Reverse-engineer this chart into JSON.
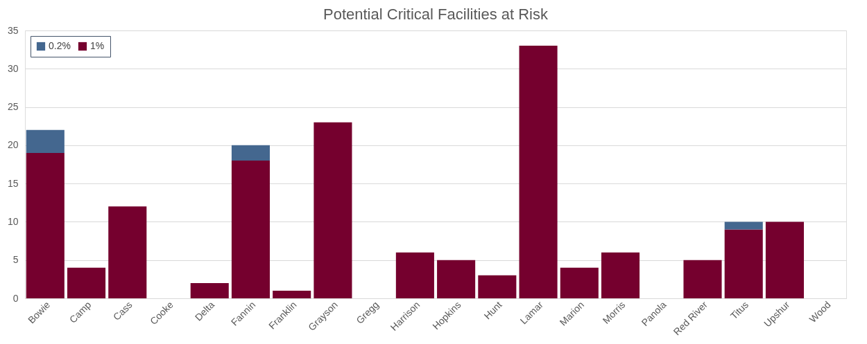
{
  "chart_data": {
    "type": "bar",
    "title": "Potential Critical Facilities at Risk",
    "stacked": true,
    "categories": [
      "Bowie",
      "Camp",
      "Cass",
      "Cooke",
      "Delta",
      "Fannin",
      "Franklin",
      "Grayson",
      "Gregg",
      "Harrison",
      "Hopkins",
      "Hunt",
      "Lamar",
      "Marion",
      "Morris",
      "Panola",
      "Red River",
      "Titus",
      "Upshur",
      "Wood"
    ],
    "series": [
      {
        "name": "1%",
        "color": "#75002e",
        "values": [
          19,
          4,
          12,
          0,
          2,
          18,
          1,
          23,
          0,
          6,
          5,
          3,
          33,
          4,
          6,
          0,
          5,
          9,
          10,
          0
        ]
      },
      {
        "name": "0.2%",
        "color": "#44678f",
        "values": [
          3,
          0,
          0,
          0,
          0,
          2,
          0,
          0,
          0,
          0,
          0,
          0,
          0,
          0,
          0,
          0,
          0,
          1,
          0,
          0
        ]
      }
    ],
    "ylim": [
      0,
      35
    ],
    "yticks": [
      0,
      5,
      10,
      15,
      20,
      25,
      30,
      35
    ],
    "grid": "y",
    "legend": "top left"
  }
}
